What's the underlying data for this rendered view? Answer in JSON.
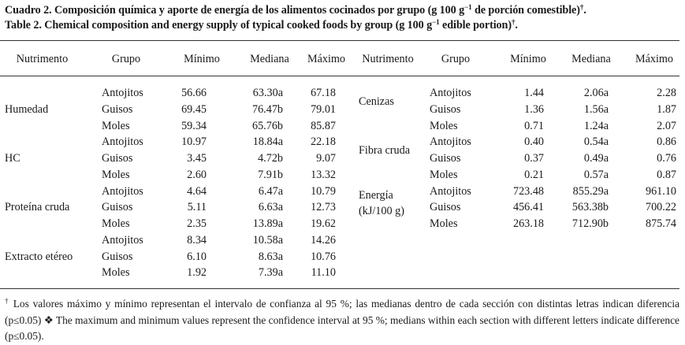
{
  "caption": {
    "es_prefix": "Cuadro 2. Composición química y aporte de energía de los alimentos cocinados por grupo (g 100 g",
    "es_suffix": " de porción comestible)",
    "en_prefix": "Table 2. Chemical composition and energy supply of typical cooked foods by group (g 100 g",
    "en_suffix": " edible portion)",
    "superscript": "−1",
    "dagger": "†"
  },
  "headers": [
    "Nutrimento",
    "Grupo",
    "Mínimo",
    "Mediana",
    "Máximo",
    "Nutrimento",
    "Grupo",
    "Mínimo",
    "Mediana",
    "Máximo"
  ],
  "left_groups": [
    {
      "nutrient": "Humedad",
      "rows": [
        {
          "grupo": "Antojitos",
          "min": "56.66",
          "med": "63.30a",
          "max": "67.18"
        },
        {
          "grupo": "Guisos",
          "min": "69.45",
          "med": "76.47b",
          "max": "79.01"
        },
        {
          "grupo": "Moles",
          "min": "59.34",
          "med": "65.76b",
          "max": "85.87"
        }
      ]
    },
    {
      "nutrient": "HC",
      "rows": [
        {
          "grupo": "Antojitos",
          "min": "10.97",
          "med": "18.84a",
          "max": "22.18"
        },
        {
          "grupo": "Guisos",
          "min": "3.45",
          "med": "4.72b",
          "max": "9.07"
        },
        {
          "grupo": "Moles",
          "min": "2.60",
          "med": "7.91b",
          "max": "13.32"
        }
      ]
    },
    {
      "nutrient": "Proteína cruda",
      "rows": [
        {
          "grupo": "Antojitos",
          "min": "4.64",
          "med": "6.47a",
          "max": "10.79"
        },
        {
          "grupo": "Guisos",
          "min": "5.11",
          "med": "6.63a",
          "max": "12.73"
        },
        {
          "grupo": "Moles",
          "min": "2.35",
          "med": "13.89a",
          "max": "19.62"
        }
      ]
    },
    {
      "nutrient": "Extracto etéreo",
      "rows": [
        {
          "grupo": "Antojitos",
          "min": "8.34",
          "med": "10.58a",
          "max": "14.26"
        },
        {
          "grupo": "Guisos",
          "min": "6.10",
          "med": "8.63a",
          "max": "10.76"
        },
        {
          "grupo": "Moles",
          "min": "1.92",
          "med": "7.39a",
          "max": "11.10"
        }
      ]
    }
  ],
  "right_groups": [
    {
      "nutrient": "Cenizas",
      "rows": [
        {
          "grupo": "Antojitos",
          "min": "1.44",
          "med": "2.06a",
          "max": "2.28"
        },
        {
          "grupo": "Guisos",
          "min": "1.36",
          "med": "1.56a",
          "max": "1.87"
        },
        {
          "grupo": "Moles",
          "min": "0.71",
          "med": "1.24a",
          "max": "2.07"
        }
      ]
    },
    {
      "nutrient": "Fibra cruda",
      "rows": [
        {
          "grupo": "Antojitos",
          "min": "0.40",
          "med": "0.54a",
          "max": "0.86"
        },
        {
          "grupo": "Guisos",
          "min": "0.37",
          "med": "0.49a",
          "max": "0.76"
        },
        {
          "grupo": "Moles",
          "min": "0.21",
          "med": "0.57a",
          "max": "0.87"
        }
      ]
    },
    {
      "nutrient": "Energía",
      "nutrient_line2": "(kJ/100 g)",
      "rows": [
        {
          "grupo": "Antojitos",
          "min": "723.48",
          "med": "855.29a",
          "max": "961.10"
        },
        {
          "grupo": "Guisos",
          "min": "456.41",
          "med": "563.38b",
          "max": "700.22"
        },
        {
          "grupo": "Moles",
          "min": "263.18",
          "med": "712.90b",
          "max": "875.74"
        }
      ]
    }
  ],
  "footnote": {
    "dagger": "†",
    "text": " Los valores máximo y mínimo representan el intervalo de confianza al 95 %; las medianas dentro de cada sección con distintas letras indican diferencia (p≤0.05) ❖ The maximum and minimum values represent the confidence interval at 95 %; medians within each section with different letters indicate difference (p≤0.05)."
  }
}
